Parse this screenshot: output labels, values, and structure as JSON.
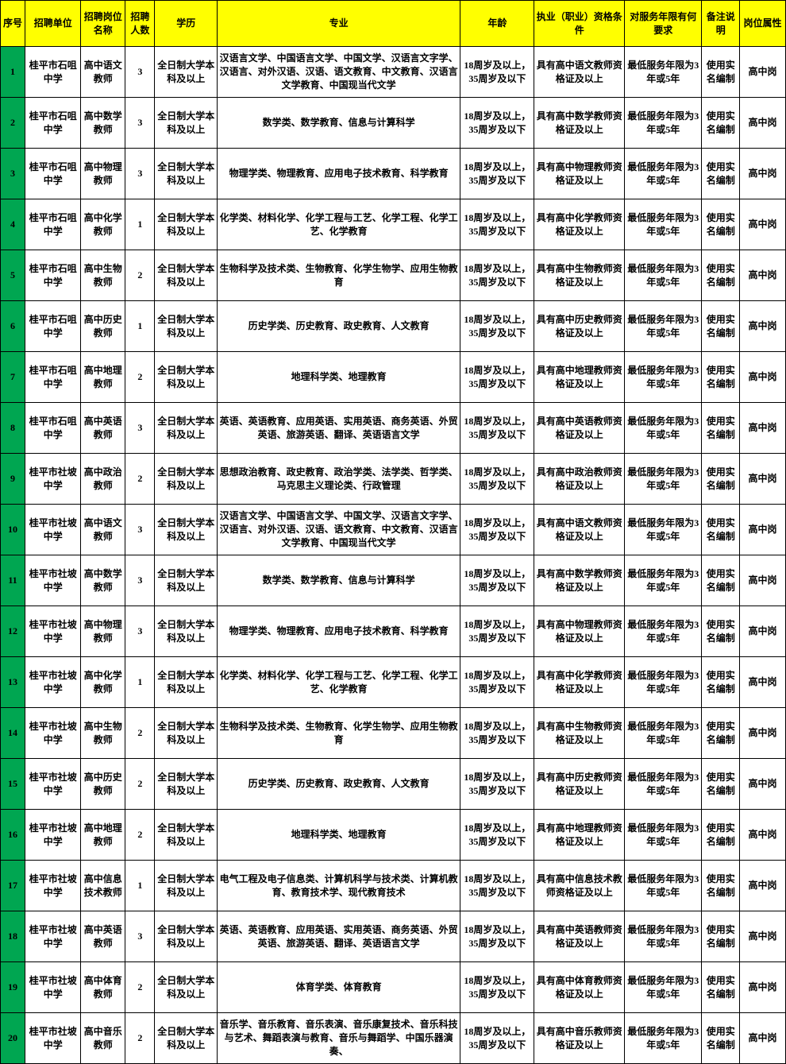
{
  "columns": [
    "序号",
    "招聘单位",
    "招聘岗位名称",
    "招聘人数",
    "学历",
    "专业",
    "年龄",
    "执业（职业）资格条件",
    "对服务年限有何要求",
    "备注说明",
    "岗位属性"
  ],
  "rows": [
    [
      "1",
      "桂平市石咀中学",
      "高中语文教师",
      "3",
      "全日制大学本科及以上",
      "汉语言文学、中国语言文学、中国文学、汉语言文字学、汉语言、对外汉语、汉语、语文教育、中文教育、汉语言文学教育、中国现当代文学",
      "18周岁及以上，35周岁及以下",
      "具有高中语文教师资格证及以上",
      "最低服务年限为3年或5年",
      "使用实名编制",
      "高中岗"
    ],
    [
      "2",
      "桂平市石咀中学",
      "高中数学教师",
      "3",
      "全日制大学本科及以上",
      "数学类、数学教育、信息与计算科学",
      "18周岁及以上，35周岁及以下",
      "具有高中数学教师资格证及以上",
      "最低服务年限为3年或5年",
      "使用实名编制",
      "高中岗"
    ],
    [
      "3",
      "桂平市石咀中学",
      "高中物理教师",
      "3",
      "全日制大学本科及以上",
      "物理学类、物理教育、应用电子技术教育、科学教育",
      "18周岁及以上，35周岁及以下",
      "具有高中物理教师资格证及以上",
      "最低服务年限为3年或5年",
      "使用实名编制",
      "高中岗"
    ],
    [
      "4",
      "桂平市石咀中学",
      "高中化学教师",
      "1",
      "全日制大学本科及以上",
      "化学类、材料化学、化学工程与工艺、化学工程、化学工艺、化学教育",
      "18周岁及以上，35周岁及以下",
      "具有高中化学教师资格证及以上",
      "最低服务年限为3年或5年",
      "使用实名编制",
      "高中岗"
    ],
    [
      "5",
      "桂平市石咀中学",
      "高中生物教师",
      "2",
      "全日制大学本科及以上",
      "生物科学及技术类、生物教育、化学生物学、应用生物教育",
      "18周岁及以上，35周岁及以下",
      "具有高中生物教师资格证及以上",
      "最低服务年限为3年或5年",
      "使用实名编制",
      "高中岗"
    ],
    [
      "6",
      "桂平市石咀中学",
      "高中历史教师",
      "1",
      "全日制大学本科及以上",
      "历史学类、历史教育、政史教育、人文教育",
      "18周岁及以上，35周岁及以下",
      "具有高中历史教师资格证及以上",
      "最低服务年限为3年或5年",
      "使用实名编制",
      "高中岗"
    ],
    [
      "7",
      "桂平市石咀中学",
      "高中地理教师",
      "2",
      "全日制大学本科及以上",
      "地理科学类、地理教育",
      "18周岁及以上，35周岁及以下",
      "具有高中地理教师资格证及以上",
      "最低服务年限为3年或5年",
      "使用实名编制",
      "高中岗"
    ],
    [
      "8",
      "桂平市石咀中学",
      "高中英语教师",
      "3",
      "全日制大学本科及以上",
      "英语、英语教育、应用英语、实用英语、商务英语、外贸英语、旅游英语、翻译、英语语言文学",
      "18周岁及以上，35周岁及以下",
      "具有高中英语教师资格证及以上",
      "最低服务年限为3年或5年",
      "使用实名编制",
      "高中岗"
    ],
    [
      "9",
      "桂平市社坡中学",
      "高中政治教师",
      "2",
      "全日制大学本科及以上",
      "思想政治教育、政史教育、政治学类、法学类、哲学类、马克思主义理论类、行政管理",
      "18周岁及以上，35周岁及以下",
      "具有高中政治教师资格证及以上",
      "最低服务年限为3年或5年",
      "使用实名编制",
      "高中岗"
    ],
    [
      "10",
      "桂平市社坡中学",
      "高中语文教师",
      "3",
      "全日制大学本科及以上",
      "汉语言文学、中国语言文学、中国文学、汉语言文字学、汉语言、对外汉语、汉语、语文教育、中文教育、汉语言文学教育、中国现当代文学",
      "18周岁及以上，35周岁及以下",
      "具有高中语文教师资格证及以上",
      "最低服务年限为3年或5年",
      "使用实名编制",
      "高中岗"
    ],
    [
      "11",
      "桂平市社坡中学",
      "高中数学教师",
      "3",
      "全日制大学本科及以上",
      "数学类、数学教育、信息与计算科学",
      "18周岁及以上，35周岁及以下",
      "具有高中数学教师资格证及以上",
      "最低服务年限为3年或5年",
      "使用实名编制",
      "高中岗"
    ],
    [
      "12",
      "桂平市社坡中学",
      "高中物理教师",
      "3",
      "全日制大学本科及以上",
      "物理学类、物理教育、应用电子技术教育、科学教育",
      "18周岁及以上，35周岁及以下",
      "具有高中物理教师资格证及以上",
      "最低服务年限为3年或5年",
      "使用实名编制",
      "高中岗"
    ],
    [
      "13",
      "桂平市社坡中学",
      "高中化学教师",
      "1",
      "全日制大学本科及以上",
      "化学类、材料化学、化学工程与工艺、化学工程、化学工艺、化学教育",
      "18周岁及以上，35周岁及以下",
      "具有高中化学教师资格证及以上",
      "最低服务年限为3年或5年",
      "使用实名编制",
      "高中岗"
    ],
    [
      "14",
      "桂平市社坡中学",
      "高中生物教师",
      "2",
      "全日制大学本科及以上",
      "生物科学及技术类、生物教育、化学生物学、应用生物教育",
      "18周岁及以上，35周岁及以下",
      "具有高中生物教师资格证及以上",
      "最低服务年限为3年或5年",
      "使用实名编制",
      "高中岗"
    ],
    [
      "15",
      "桂平市社坡中学",
      "高中历史教师",
      "2",
      "全日制大学本科及以上",
      "历史学类、历史教育、政史教育、人文教育",
      "18周岁及以上，35周岁及以下",
      "具有高中历史教师资格证及以上",
      "最低服务年限为3年或5年",
      "使用实名编制",
      "高中岗"
    ],
    [
      "16",
      "桂平市社坡中学",
      "高中地理教师",
      "2",
      "全日制大学本科及以上",
      "地理科学类、地理教育",
      "18周岁及以上，35周岁及以下",
      "具有高中地理教师资格证及以上",
      "最低服务年限为3年或5年",
      "使用实名编制",
      "高中岗"
    ],
    [
      "17",
      "桂平市社坡中学",
      "高中信息技术教师",
      "1",
      "全日制大学本科及以上",
      "电气工程及电子信息类、计算机科学与技术类、计算机教育、教育技术学、现代教育技术",
      "18周岁及以上，35周岁及以下",
      "具有高中信息技术教师资格证及以上",
      "最低服务年限为3年或5年",
      "使用实名编制",
      "高中岗"
    ],
    [
      "18",
      "桂平市社坡中学",
      "高中英语教师",
      "3",
      "全日制大学本科及以上",
      "英语、英语教育、应用英语、实用英语、商务英语、外贸英语、旅游英语、翻译、英语语言文学",
      "18周岁及以上，35周岁及以下",
      "具有高中英语教师资格证及以上",
      "最低服务年限为3年或5年",
      "使用实名编制",
      "高中岗"
    ],
    [
      "19",
      "桂平市社坡中学",
      "高中体育教师",
      "2",
      "全日制大学本科及以上",
      "体育学类、体育教育",
      "18周岁及以上，35周岁及以下",
      "具有高中体育教师资格证及以上",
      "最低服务年限为3年或5年",
      "使用实名编制",
      "高中岗"
    ],
    [
      "20",
      "桂平市社坡中学",
      "高中音乐教师",
      "2",
      "全日制大学本科及以上",
      "音乐学、音乐教育、音乐表演、音乐康复技术、音乐科技与艺术、舞蹈表演与教育、音乐与舞蹈学、中国乐器演奏、",
      "18周岁及以上，35周岁及以下",
      "具有高中音乐教师资格证及以上",
      "最低服务年限为3年或5年",
      "使用实名编制",
      "高中岗"
    ]
  ]
}
